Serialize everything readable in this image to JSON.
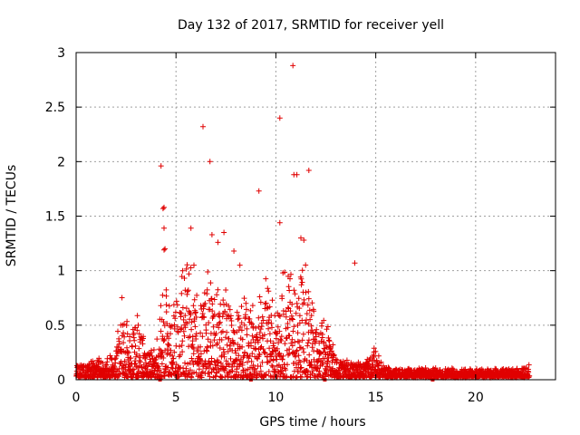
{
  "chart_data": {
    "type": "scatter",
    "title": "Day 132 of 2017, SRMTID for receiver yell",
    "xlabel": "GPS time / hours",
    "ylabel": "SRMTID / TECUs",
    "xlim": [
      0,
      24
    ],
    "ylim": [
      0,
      3
    ],
    "x_ticks": [
      0,
      5,
      10,
      15,
      20
    ],
    "y_ticks": [
      0,
      0.5,
      1,
      1.5,
      2,
      2.5,
      3
    ],
    "x_tick_labels": [
      "0",
      "5",
      "10",
      "15",
      "20"
    ],
    "y_tick_labels": [
      "0",
      "0.5",
      "1",
      "1.5",
      "2",
      "2.5",
      "3"
    ],
    "grid": true,
    "marker": "+",
    "series_color": "#e00000",
    "outliers": [
      {
        "x": 4.25,
        "y": 1.96
      },
      {
        "x": 4.4,
        "y": 1.58
      },
      {
        "x": 4.35,
        "y": 1.57
      },
      {
        "x": 4.4,
        "y": 1.39
      },
      {
        "x": 4.4,
        "y": 1.19
      },
      {
        "x": 4.45,
        "y": 1.2
      },
      {
        "x": 6.35,
        "y": 2.32
      },
      {
        "x": 6.7,
        "y": 2.0
      },
      {
        "x": 5.75,
        "y": 1.39
      },
      {
        "x": 6.8,
        "y": 1.33
      },
      {
        "x": 7.4,
        "y": 1.35
      },
      {
        "x": 7.1,
        "y": 1.26
      },
      {
        "x": 7.9,
        "y": 1.18
      },
      {
        "x": 9.15,
        "y": 1.73
      },
      {
        "x": 10.2,
        "y": 2.4
      },
      {
        "x": 10.85,
        "y": 2.88
      },
      {
        "x": 10.9,
        "y": 1.88
      },
      {
        "x": 11.05,
        "y": 1.88
      },
      {
        "x": 11.65,
        "y": 1.92
      },
      {
        "x": 10.2,
        "y": 1.44
      },
      {
        "x": 11.25,
        "y": 1.3
      },
      {
        "x": 11.4,
        "y": 1.28
      },
      {
        "x": 13.95,
        "y": 1.07
      },
      {
        "x": 8.2,
        "y": 1.05
      },
      {
        "x": 5.9,
        "y": 1.05
      }
    ],
    "envelope": [
      {
        "x": 0,
        "y": 0.13
      },
      {
        "x": 0.5,
        "y": 0.12
      },
      {
        "x": 1,
        "y": 0.18
      },
      {
        "x": 1.5,
        "y": 0.15
      },
      {
        "x": 2,
        "y": 0.25
      },
      {
        "x": 2.3,
        "y": 0.75
      },
      {
        "x": 2.7,
        "y": 0.35
      },
      {
        "x": 3.1,
        "y": 0.55
      },
      {
        "x": 3.5,
        "y": 0.25
      },
      {
        "x": 4,
        "y": 0.3
      },
      {
        "x": 4.5,
        "y": 0.9
      },
      {
        "x": 5,
        "y": 0.65
      },
      {
        "x": 5.5,
        "y": 1.1
      },
      {
        "x": 6,
        "y": 0.75
      },
      {
        "x": 6.5,
        "y": 0.9
      },
      {
        "x": 7,
        "y": 0.75
      },
      {
        "x": 7.5,
        "y": 0.85
      },
      {
        "x": 8,
        "y": 0.6
      },
      {
        "x": 8.5,
        "y": 0.7
      },
      {
        "x": 9,
        "y": 0.6
      },
      {
        "x": 9.5,
        "y": 0.85
      },
      {
        "x": 10,
        "y": 0.7
      },
      {
        "x": 10.5,
        "y": 1.0
      },
      {
        "x": 11,
        "y": 0.8
      },
      {
        "x": 11.5,
        "y": 1.0
      },
      {
        "x": 12,
        "y": 0.55
      },
      {
        "x": 12.5,
        "y": 0.5
      },
      {
        "x": 13,
        "y": 0.2
      },
      {
        "x": 13.5,
        "y": 0.15
      },
      {
        "x": 14,
        "y": 0.12
      },
      {
        "x": 14.5,
        "y": 0.15
      },
      {
        "x": 15,
        "y": 0.3
      },
      {
        "x": 15.3,
        "y": 0.12
      },
      {
        "x": 16,
        "y": 0.08
      },
      {
        "x": 18,
        "y": 0.08
      },
      {
        "x": 20,
        "y": 0.07
      },
      {
        "x": 22,
        "y": 0.08
      },
      {
        "x": 22.7,
        "y": 0.12
      }
    ],
    "x_range": [
      0,
      22.7
    ],
    "zero_points": [
      {
        "x": 4.2,
        "y": 0
      },
      {
        "x": 8.75,
        "y": 0
      },
      {
        "x": 12.45,
        "y": 0
      },
      {
        "x": 17.85,
        "y": 0
      }
    ]
  }
}
